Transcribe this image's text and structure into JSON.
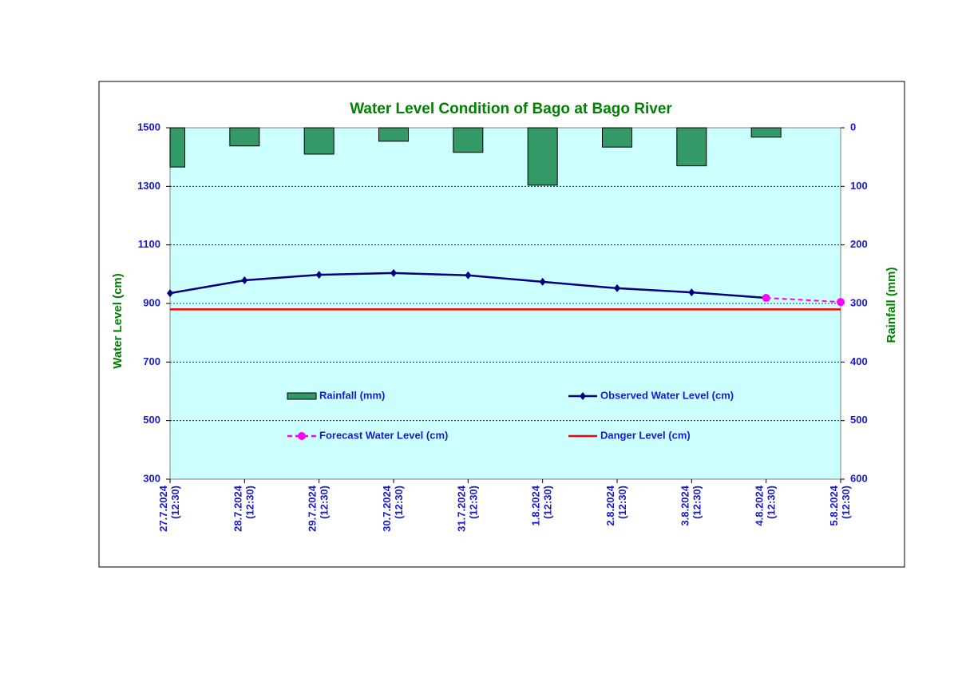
{
  "chart_data": {
    "type": "line",
    "title": "Water Level Condition of Bago at Bago River",
    "ylabel": "Water Level (cm)",
    "y2label": "Rainfall (mm)",
    "categories": [
      "27.7.2024 (12:30)",
      "28.7.2024 (12:30)",
      "29.7.2024 (12:30)",
      "30.7.2024 (12:30)",
      "31.7.2024 (12:30)",
      "1.8.2024 (12:30)",
      "2.8.2024 (12:30)",
      "3.8.2024 (12:30)",
      "4.8.2024 (12:30)",
      "5.8.2024 (12:30)"
    ],
    "ylim": [
      300,
      1500
    ],
    "yticks": [
      300,
      500,
      700,
      900,
      1100,
      1300,
      1500
    ],
    "y2lim": [
      600,
      0
    ],
    "y2ticks": [
      0,
      100,
      200,
      300,
      400,
      500,
      600
    ],
    "grid": true,
    "series": [
      {
        "name": "Rainfall (mm)",
        "type": "bar",
        "axis": "y2",
        "color": "#339966",
        "values": [
          67,
          31,
          45,
          23,
          42,
          98,
          33,
          65,
          16,
          null
        ]
      },
      {
        "name": "Observed Water Level (cm)",
        "type": "line",
        "color": "#000080",
        "marker": "diamond",
        "values": [
          935,
          979,
          998,
          1004,
          996,
          974,
          952,
          938,
          919,
          null
        ]
      },
      {
        "name": "Forecast Water Level (cm)",
        "type": "line",
        "color": "#ff00ff",
        "dashed": true,
        "marker": "circle",
        "values": [
          null,
          null,
          null,
          null,
          null,
          null,
          null,
          null,
          919,
          905
        ]
      },
      {
        "name": "Danger Level (cm)",
        "type": "line",
        "color": "#ff0000",
        "values": [
          880,
          880,
          880,
          880,
          880,
          880,
          880,
          880,
          880,
          880
        ]
      }
    ]
  }
}
